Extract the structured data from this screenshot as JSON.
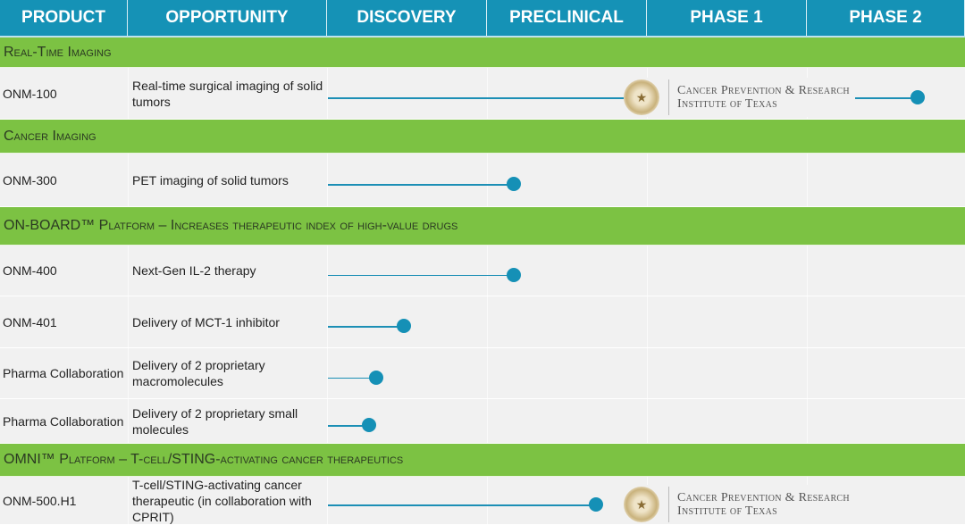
{
  "header": {
    "columns": [
      "PRODUCT",
      "OPPORTUNITY",
      "DISCOVERY",
      "PRECLINICAL",
      "PHASE 1",
      "PHASE 2"
    ]
  },
  "colors": {
    "header": "#1592b6",
    "section": "#7cc243",
    "bar": "#1590b6"
  },
  "logo": {
    "icon": "texas-seal-icon",
    "line1": "Cancer Prevention & Research",
    "line2": "Institute of Texas"
  },
  "sections": [
    {
      "title": "Real-Time Imaging",
      "rows": [
        {
          "product": "ONM-100",
          "opportunity": "Real-time surgical imaging of solid tumors",
          "progress_stages": 3.69,
          "logo": true
        }
      ]
    },
    {
      "title": "Cancer Imaging",
      "rows": [
        {
          "product": "ONM-300",
          "opportunity": "PET imaging of solid tumors",
          "progress_stages": 1.17
        }
      ]
    },
    {
      "title": "ON-BOARD™ Platform – Increases therapeutic index of high-value drugs",
      "rows": [
        {
          "product": "ONM-400",
          "opportunity": "Next-Gen IL-2 therapy",
          "progress_stages": 1.17
        },
        {
          "product": "ONM-401",
          "opportunity": "Delivery of MCT-1 inhibitor",
          "progress_stages": 0.48
        },
        {
          "product": "Pharma Collaboration",
          "opportunity": "Delivery of 2 proprietary macromolecules",
          "progress_stages": 0.31
        },
        {
          "product": "Pharma Collaboration",
          "opportunity": "Delivery of 2 proprietary small molecules",
          "progress_stages": 0.26
        }
      ]
    },
    {
      "title": "OMNI™ Platform – T-cell/STING-activating cancer therapeutics",
      "rows": [
        {
          "product": "ONM-500.H1",
          "opportunity": "T-cell/STING-activating cancer therapeutic (in collaboration with CPRIT)",
          "progress_stages": 1.68,
          "logo": true
        }
      ]
    }
  ]
}
